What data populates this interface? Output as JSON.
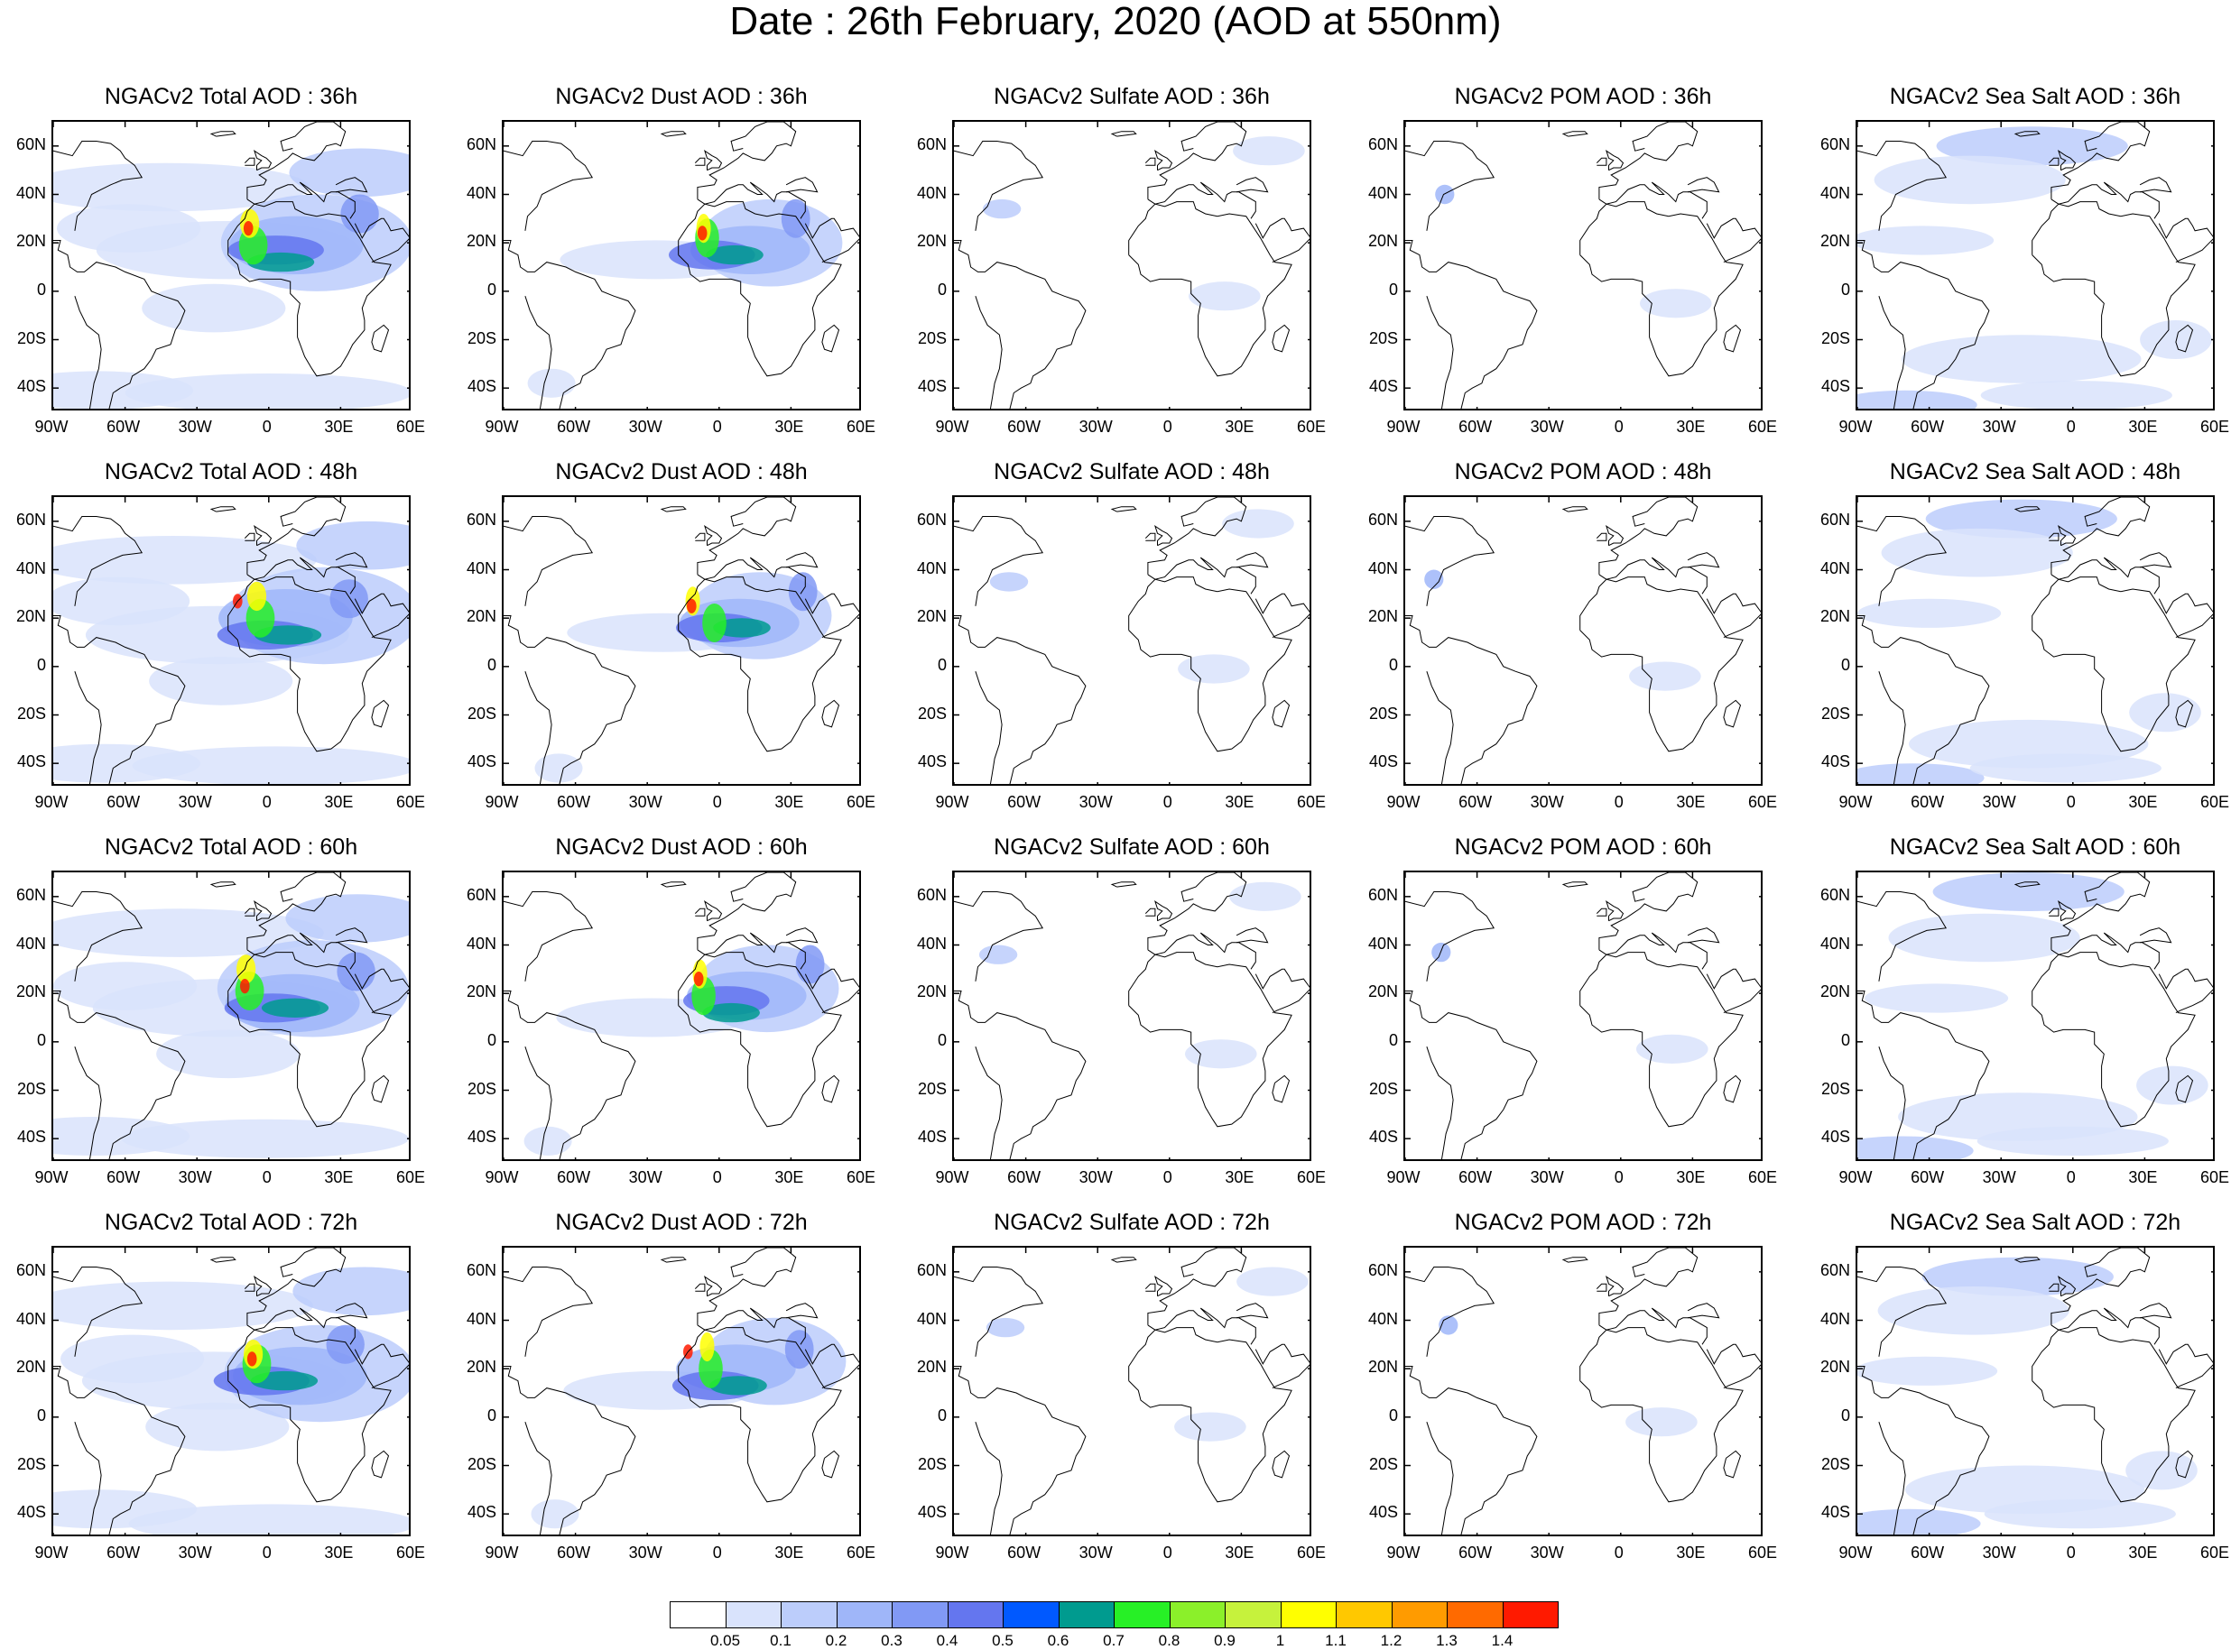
{
  "title": "Date : 26th February, 2020 (AOD at 550nm)",
  "panels": [
    [
      "NGACv2 Total AOD : 36h",
      "NGACv2 Dust AOD : 36h",
      "NGACv2 Sulfate AOD : 36h",
      "NGACv2 POM AOD : 36h",
      "NGACv2 Sea Salt AOD : 36h"
    ],
    [
      "NGACv2 Total AOD : 48h",
      "NGACv2 Dust AOD : 48h",
      "NGACv2 Sulfate AOD : 48h",
      "NGACv2 POM AOD : 48h",
      "NGACv2 Sea Salt AOD : 48h"
    ],
    [
      "NGACv2 Total AOD : 60h",
      "NGACv2 Dust AOD : 60h",
      "NGACv2 Sulfate AOD : 60h",
      "NGACv2 POM AOD : 60h",
      "NGACv2 Sea Salt AOD : 60h"
    ],
    [
      "NGACv2 Total AOD : 72h",
      "NGACv2 Dust AOD : 72h",
      "NGACv2 Sulfate AOD : 72h",
      "NGACv2 POM AOD : 72h",
      "NGACv2 Sea Salt  AOD : 72h"
    ]
  ],
  "lat_ticks": [
    {
      "label": "60N",
      "lat": 60
    },
    {
      "label": "40N",
      "lat": 40
    },
    {
      "label": "20N",
      "lat": 20
    },
    {
      "label": "0",
      "lat": 0
    },
    {
      "label": "20S",
      "lat": -20
    },
    {
      "label": "40S",
      "lat": -40
    }
  ],
  "lon_ticks": [
    {
      "label": "90W",
      "lon": -90
    },
    {
      "label": "60W",
      "lon": -60
    },
    {
      "label": "30W",
      "lon": -30
    },
    {
      "label": "0",
      "lon": 0
    },
    {
      "label": "30E",
      "lon": 30
    },
    {
      "label": "60E",
      "lon": 60
    }
  ],
  "map_extent": {
    "lon_min": -90,
    "lon_max": 60,
    "lat_min": -50,
    "lat_max": 70
  },
  "colorbar": {
    "levels": [
      "0.05",
      "0.1",
      "0.2",
      "0.3",
      "0.4",
      "0.5",
      "0.6",
      "0.7",
      "0.8",
      "0.9",
      "1",
      "1.1",
      "1.2",
      "1.3",
      "1.4"
    ],
    "colors": [
      "#ffffff",
      "#d9e3fc",
      "#bccdfb",
      "#9fb6f9",
      "#8199f5",
      "#6476ef",
      "#0059ff",
      "#009b8f",
      "#27f026",
      "#8bf02a",
      "#c6f23c",
      "#ffff00",
      "#ffc800",
      "#ff9b00",
      "#ff6a00",
      "#ff1a00"
    ]
  }
}
